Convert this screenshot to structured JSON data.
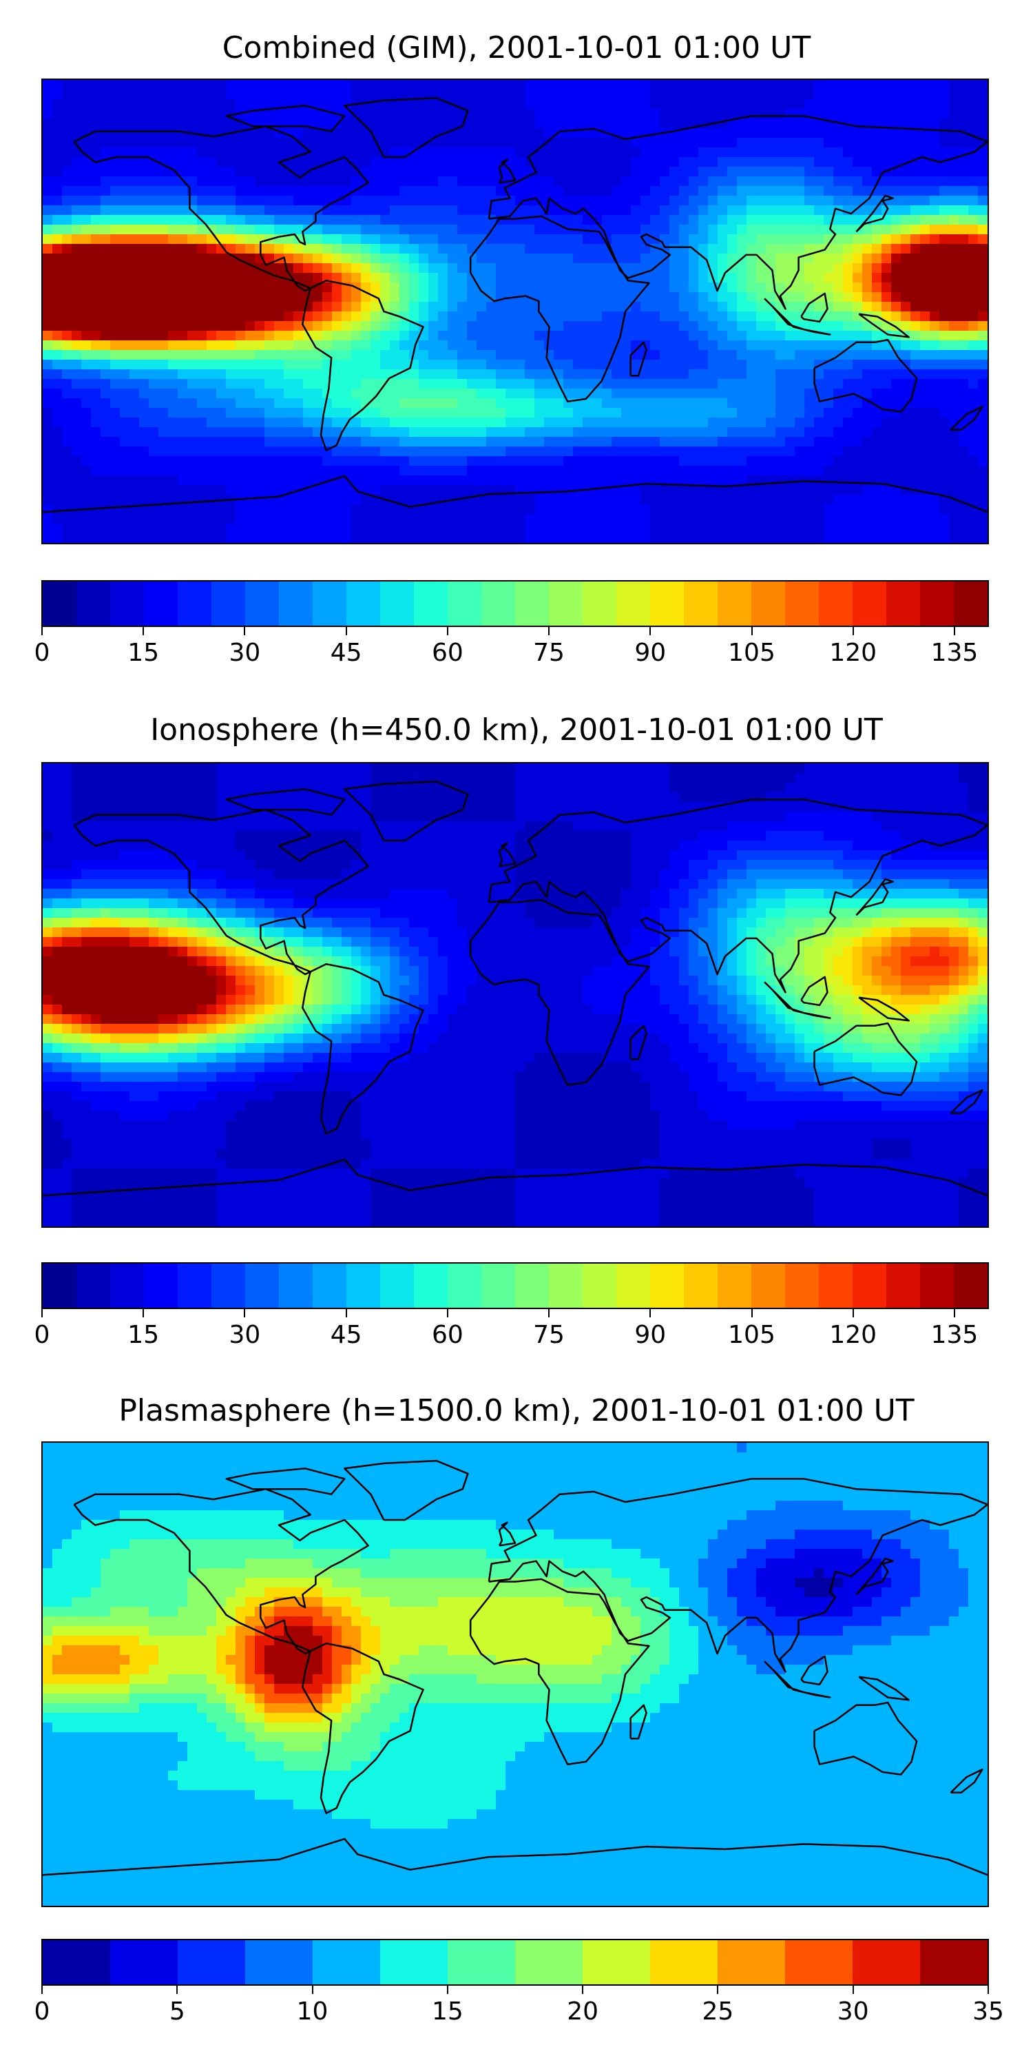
{
  "panels": [
    {
      "title": "Combined (GIM), 2001-10-01 01:00 UT",
      "colorbar": {
        "vmin": 0,
        "vmax": 140,
        "levels": 28,
        "ticks": [
          "0",
          "15",
          "30",
          "45",
          "60",
          "75",
          "90",
          "105",
          "120",
          "135"
        ],
        "tick_values": [
          0,
          15,
          30,
          45,
          60,
          75,
          90,
          105,
          120,
          135
        ]
      },
      "field": {
        "background": 14,
        "blobs": [
          {
            "lon": -165,
            "lat": 10,
            "value": 130,
            "spread_lon": 40,
            "spread_lat": 14
          },
          {
            "lon": -150,
            "lat": 5,
            "value": 125,
            "spread_lon": 35,
            "spread_lat": 12
          },
          {
            "lon": -120,
            "lat": 10,
            "value": 95,
            "spread_lon": 40,
            "spread_lat": 16
          },
          {
            "lon": -70,
            "lat": 8,
            "value": 70,
            "spread_lon": 30,
            "spread_lat": 14
          },
          {
            "lon": 10,
            "lat": 15,
            "value": 30,
            "spread_lon": 40,
            "spread_lat": 20
          },
          {
            "lon": 100,
            "lat": 15,
            "value": 70,
            "spread_lon": 25,
            "spread_lat": 25
          },
          {
            "lon": 160,
            "lat": 15,
            "value": 115,
            "spread_lon": 25,
            "spread_lat": 16
          },
          {
            "lon": 175,
            "lat": 10,
            "value": 120,
            "spread_lon": 20,
            "spread_lat": 14
          },
          {
            "lon": -60,
            "lat": -30,
            "value": 50,
            "spread_lon": 50,
            "spread_lat": 15
          },
          {
            "lon": 20,
            "lat": -40,
            "value": 45,
            "spread_lon": 60,
            "spread_lat": 10
          }
        ]
      }
    },
    {
      "title": "Ionosphere  (h=450.0 km), 2001-10-01 01:00 UT",
      "colorbar": {
        "vmin": 0,
        "vmax": 140,
        "levels": 28,
        "ticks": [
          "0",
          "15",
          "30",
          "45",
          "60",
          "75",
          "90",
          "105",
          "120",
          "135"
        ],
        "tick_values": [
          0,
          15,
          30,
          45,
          60,
          75,
          90,
          105,
          120,
          135
        ]
      },
      "field": {
        "background": 10,
        "blobs": [
          {
            "lon": -165,
            "lat": 15,
            "value": 105,
            "spread_lon": 35,
            "spread_lat": 14
          },
          {
            "lon": -150,
            "lat": -5,
            "value": 100,
            "spread_lon": 35,
            "spread_lat": 14
          },
          {
            "lon": -120,
            "lat": 5,
            "value": 60,
            "spread_lon": 40,
            "spread_lat": 18
          },
          {
            "lon": -70,
            "lat": 5,
            "value": 40,
            "spread_lon": 30,
            "spread_lat": 15
          },
          {
            "lon": 110,
            "lat": 15,
            "value": 70,
            "spread_lon": 30,
            "spread_lat": 25
          },
          {
            "lon": 165,
            "lat": 15,
            "value": 105,
            "spread_lon": 25,
            "spread_lat": 16
          },
          {
            "lon": 150,
            "lat": -20,
            "value": 50,
            "spread_lon": 30,
            "spread_lat": 15
          }
        ]
      }
    },
    {
      "title": "Plasmasphere (h=1500.0 km), 2001-10-01 01:00 UT",
      "colorbar": {
        "vmin": 0,
        "vmax": 35,
        "levels": 14,
        "ticks": [
          "0",
          "5",
          "10",
          "15",
          "20",
          "25",
          "30",
          "35"
        ],
        "tick_values": [
          0,
          5,
          10,
          15,
          20,
          25,
          30,
          35
        ]
      },
      "field": {
        "background": 11,
        "blobs": [
          {
            "lon": -85,
            "lat": 5,
            "value": 31,
            "spread_lon": 18,
            "spread_lat": 20
          },
          {
            "lon": -160,
            "lat": 5,
            "value": 27,
            "spread_lon": 30,
            "spread_lat": 12
          },
          {
            "lon": -30,
            "lat": 15,
            "value": 20,
            "spread_lon": 40,
            "spread_lat": 20
          },
          {
            "lon": 30,
            "lat": 20,
            "value": 18,
            "spread_lon": 30,
            "spread_lat": 20
          },
          {
            "lon": -120,
            "lat": 40,
            "value": 16,
            "spread_lon": 40,
            "spread_lat": 15
          },
          {
            "lon": 110,
            "lat": 35,
            "value": 2,
            "spread_lon": 30,
            "spread_lat": 15
          },
          {
            "lon": -60,
            "lat": -40,
            "value": 14,
            "spread_lon": 40,
            "spread_lat": 15
          }
        ]
      }
    }
  ],
  "colormap": [
    "#00007f",
    "#0000c8",
    "#0000ff",
    "#0040ff",
    "#0080ff",
    "#00c0ff",
    "#15ffe1",
    "#50ffa6",
    "#8aff6c",
    "#c4ff33",
    "#ffe500",
    "#ffa700",
    "#ff6800",
    "#ff2a00",
    "#c20000",
    "#7f0000"
  ],
  "coastline_color": "#000000"
}
